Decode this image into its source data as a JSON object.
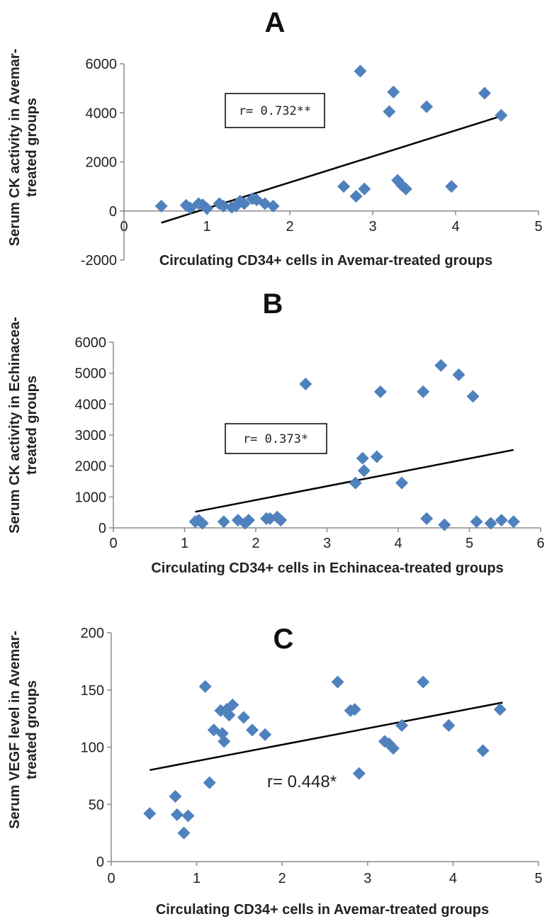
{
  "colors": {
    "marker": "#4f81bd",
    "axis": "#8c8c8c",
    "trend": "#000000"
  },
  "chart_data": [
    {
      "type": "scatter",
      "title": "A",
      "xlabel": "Circulating CD34+ cells in Avemar-treated groups",
      "ylabel": "Serum CK activity in Avemar-treated groups",
      "xlim": [
        0,
        5
      ],
      "ylim": [
        -2000,
        6000
      ],
      "xticks": [
        0,
        1,
        2,
        3,
        4,
        5
      ],
      "yticks": [
        -2000,
        0,
        2000,
        4000,
        6000
      ],
      "annotation": "r= 0.732**",
      "trendline": {
        "x": [
          0.45,
          4.58
        ],
        "y": [
          -480,
          3900
        ]
      },
      "points": [
        {
          "x": 0.45,
          "y": 200
        },
        {
          "x": 0.75,
          "y": 230
        },
        {
          "x": 0.8,
          "y": 120
        },
        {
          "x": 0.9,
          "y": 300
        },
        {
          "x": 0.95,
          "y": 250
        },
        {
          "x": 1.0,
          "y": 100
        },
        {
          "x": 1.15,
          "y": 300
        },
        {
          "x": 1.2,
          "y": 200
        },
        {
          "x": 1.3,
          "y": 150
        },
        {
          "x": 1.35,
          "y": 200
        },
        {
          "x": 1.4,
          "y": 400
        },
        {
          "x": 1.45,
          "y": 300
        },
        {
          "x": 1.55,
          "y": 500
        },
        {
          "x": 1.6,
          "y": 450
        },
        {
          "x": 1.7,
          "y": 300
        },
        {
          "x": 1.8,
          "y": 200
        },
        {
          "x": 2.65,
          "y": 1000
        },
        {
          "x": 2.8,
          "y": 600
        },
        {
          "x": 2.85,
          "y": 5700
        },
        {
          "x": 2.9,
          "y": 900
        },
        {
          "x": 3.2,
          "y": 4050
        },
        {
          "x": 3.25,
          "y": 4850
        },
        {
          "x": 3.3,
          "y": 1250
        },
        {
          "x": 3.35,
          "y": 1050
        },
        {
          "x": 3.4,
          "y": 900
        },
        {
          "x": 3.65,
          "y": 4250
        },
        {
          "x": 3.95,
          "y": 1000
        },
        {
          "x": 4.35,
          "y": 4800
        },
        {
          "x": 4.55,
          "y": 3900
        }
      ]
    },
    {
      "type": "scatter",
      "title": "B",
      "xlabel": "Circulating CD34+ cells in Echinacea-treated groups",
      "ylabel": "Serum CK activity in Echinacea-treated groups",
      "xlim": [
        0,
        6
      ],
      "ylim": [
        0,
        6000
      ],
      "xticks": [
        0,
        1,
        2,
        3,
        4,
        5,
        6
      ],
      "yticks": [
        0,
        1000,
        2000,
        3000,
        4000,
        5000,
        6000
      ],
      "annotation": "r= 0.373*",
      "trendline": {
        "x": [
          1.15,
          5.62
        ],
        "y": [
          520,
          2520
        ]
      },
      "points": [
        {
          "x": 1.15,
          "y": 200
        },
        {
          "x": 1.2,
          "y": 250
        },
        {
          "x": 1.25,
          "y": 150
        },
        {
          "x": 1.55,
          "y": 200
        },
        {
          "x": 1.75,
          "y": 250
        },
        {
          "x": 1.85,
          "y": 150
        },
        {
          "x": 1.9,
          "y": 250
        },
        {
          "x": 2.15,
          "y": 300
        },
        {
          "x": 2.2,
          "y": 300
        },
        {
          "x": 2.3,
          "y": 350
        },
        {
          "x": 2.35,
          "y": 250
        },
        {
          "x": 2.7,
          "y": 4650
        },
        {
          "x": 3.4,
          "y": 1450
        },
        {
          "x": 3.5,
          "y": 2250
        },
        {
          "x": 3.52,
          "y": 1850
        },
        {
          "x": 3.7,
          "y": 2300
        },
        {
          "x": 3.75,
          "y": 4400
        },
        {
          "x": 4.05,
          "y": 1450
        },
        {
          "x": 4.35,
          "y": 4400
        },
        {
          "x": 4.4,
          "y": 300
        },
        {
          "x": 4.6,
          "y": 5250
        },
        {
          "x": 4.65,
          "y": 100
        },
        {
          "x": 4.85,
          "y": 4950
        },
        {
          "x": 5.05,
          "y": 4250
        },
        {
          "x": 5.1,
          "y": 200
        },
        {
          "x": 5.3,
          "y": 150
        },
        {
          "x": 5.45,
          "y": 250
        },
        {
          "x": 5.62,
          "y": 200
        }
      ]
    },
    {
      "type": "scatter",
      "title": "C",
      "xlabel": "Circulating CD34+ cells in Avemar-treated groups",
      "ylabel": "Serum VEGF level in Avemar-treated groups",
      "xlim": [
        0,
        5
      ],
      "ylim": [
        0,
        200
      ],
      "xticks": [
        0,
        1,
        2,
        3,
        4,
        5
      ],
      "yticks": [
        0,
        50,
        100,
        150,
        200
      ],
      "annotation": "r= 0.448*",
      "trendline": {
        "x": [
          0.45,
          4.58
        ],
        "y": [
          80,
          139
        ]
      },
      "points": [
        {
          "x": 0.45,
          "y": 42
        },
        {
          "x": 0.75,
          "y": 57
        },
        {
          "x": 0.77,
          "y": 41
        },
        {
          "x": 0.85,
          "y": 25
        },
        {
          "x": 0.9,
          "y": 40
        },
        {
          "x": 1.1,
          "y": 153
        },
        {
          "x": 1.15,
          "y": 69
        },
        {
          "x": 1.2,
          "y": 115
        },
        {
          "x": 1.28,
          "y": 132
        },
        {
          "x": 1.3,
          "y": 112
        },
        {
          "x": 1.32,
          "y": 105
        },
        {
          "x": 1.35,
          "y": 133
        },
        {
          "x": 1.38,
          "y": 128
        },
        {
          "x": 1.42,
          "y": 137
        },
        {
          "x": 1.55,
          "y": 126
        },
        {
          "x": 1.65,
          "y": 115
        },
        {
          "x": 1.8,
          "y": 111
        },
        {
          "x": 2.65,
          "y": 157
        },
        {
          "x": 2.8,
          "y": 132
        },
        {
          "x": 2.85,
          "y": 133
        },
        {
          "x": 2.9,
          "y": 77
        },
        {
          "x": 3.2,
          "y": 105
        },
        {
          "x": 3.25,
          "y": 103
        },
        {
          "x": 3.3,
          "y": 99
        },
        {
          "x": 3.4,
          "y": 119
        },
        {
          "x": 3.65,
          "y": 157
        },
        {
          "x": 3.95,
          "y": 119
        },
        {
          "x": 4.35,
          "y": 97
        },
        {
          "x": 4.55,
          "y": 133
        }
      ]
    }
  ]
}
